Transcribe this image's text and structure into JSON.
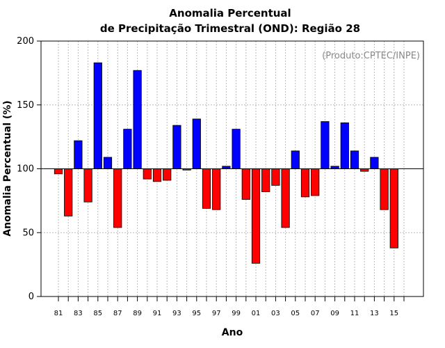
{
  "chart_data": {
    "type": "bar",
    "title": "Anomalia Percentual",
    "subtitle": "de Precipitação Trimestral (OND): Região 28",
    "xlabel": "Ano",
    "ylabel": "Anomalia Percentual (%)",
    "annotation": "(Produto:CPTEC/INPE)",
    "ylim": [
      0,
      200
    ],
    "yticks": [
      0,
      50,
      100,
      150,
      200
    ],
    "baseline": 100,
    "grid": true,
    "colors": {
      "above": "#0000ff",
      "below": "#ff0000"
    },
    "categories": [
      "81",
      "82",
      "83",
      "84",
      "85",
      "86",
      "87",
      "88",
      "89",
      "90",
      "91",
      "92",
      "93",
      "94",
      "95",
      "96",
      "97",
      "98",
      "99",
      "00",
      "01",
      "02",
      "03",
      "04",
      "05",
      "06",
      "07",
      "08",
      "09",
      "10",
      "11",
      "12",
      "13",
      "14",
      "15"
    ],
    "xtick_labels": [
      "81",
      "83",
      "85",
      "87",
      "89",
      "91",
      "93",
      "95",
      "97",
      "99",
      "01",
      "03",
      "05",
      "07",
      "09",
      "11",
      "13",
      "15"
    ],
    "values": [
      96,
      63,
      122,
      74,
      183,
      109,
      54,
      131,
      177,
      92,
      90,
      91,
      134,
      99,
      139,
      69,
      68,
      102,
      131,
      76,
      26,
      82,
      87,
      54,
      114,
      78,
      79,
      137,
      102,
      136,
      114,
      98,
      109,
      68,
      38
    ]
  }
}
